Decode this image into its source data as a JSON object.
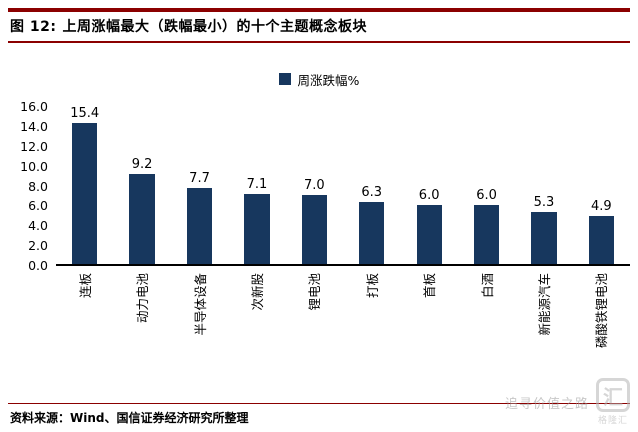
{
  "header": {
    "figure_label": "图  12:",
    "title": "上周涨幅最大（跌幅最小）的十个主题概念板块"
  },
  "chart_data": {
    "type": "bar",
    "title": "上周涨幅最大（跌幅最小）的十个主题概念板块",
    "legend": [
      "周涨跌幅%"
    ],
    "legend_position": "top",
    "categories": [
      "连板",
      "动力电池",
      "半导体设备",
      "次新股",
      "锂电池",
      "打板",
      "首板",
      "白酒",
      "新能源汽车",
      "磷酸铁锂电池"
    ],
    "values": [
      15.4,
      9.2,
      7.7,
      7.1,
      7.0,
      6.3,
      6.0,
      6.0,
      5.3,
      4.9
    ],
    "xlabel": "",
    "ylabel": "",
    "ylim": [
      0,
      16
    ],
    "ytick_step": 2,
    "yticks": [
      "16.0",
      "14.0",
      "12.0",
      "10.0",
      "8.0",
      "6.0",
      "4.0",
      "2.0",
      "0.0"
    ],
    "grid": false,
    "bar_color": "#17375E"
  },
  "footer": {
    "source": "资料来源：Wind、国信证券经济研究所整理"
  },
  "watermark": {
    "text": "追寻价值之路",
    "logo_char": "汇",
    "logo_label": "格隆汇"
  },
  "colors": {
    "accent_line": "#8B0000",
    "bar": "#17375E",
    "axis": "#000000",
    "watermark": "#B5B5B5"
  }
}
